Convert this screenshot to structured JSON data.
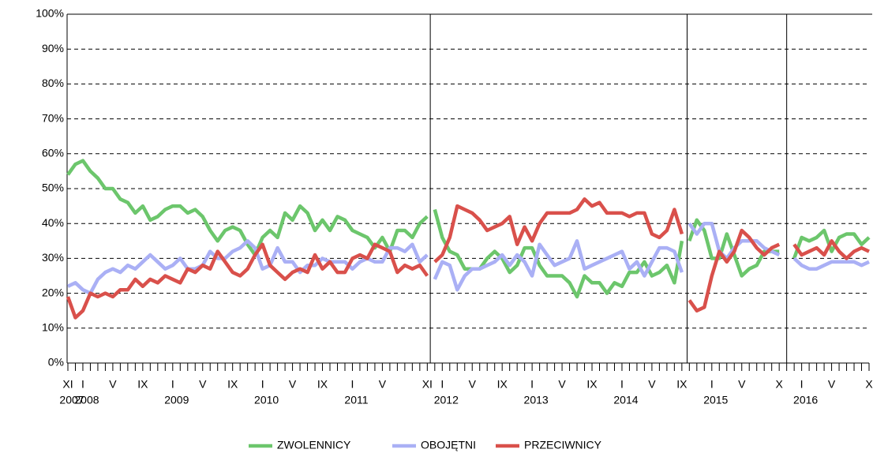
{
  "chart_data": {
    "type": "line",
    "categories": [
      "XI",
      null,
      "I",
      null,
      null,
      null,
      "V",
      null,
      null,
      null,
      "IX",
      null,
      null,
      null,
      "I",
      null,
      null,
      null,
      "V",
      null,
      null,
      null,
      "IX",
      null,
      null,
      null,
      "I",
      null,
      null,
      null,
      "V",
      null,
      null,
      null,
      "IX",
      null,
      null,
      null,
      "I",
      null,
      null,
      null,
      "V",
      null,
      null,
      null,
      null,
      null,
      "XI",
      null,
      "I",
      null,
      null,
      null,
      "V",
      null,
      null,
      null,
      "IX",
      null,
      null,
      null,
      "I",
      null,
      null,
      null,
      "V",
      null,
      null,
      null,
      "IX",
      null,
      null,
      null,
      "I",
      null,
      null,
      null,
      "V",
      null,
      null,
      null,
      "IX",
      null,
      null,
      null,
      "I",
      null,
      null,
      null,
      "V",
      null,
      null,
      null,
      null,
      "X",
      null,
      null,
      "I",
      null,
      null,
      null,
      "V",
      null,
      null,
      null,
      null,
      "X"
    ],
    "year_labels": [
      "2007",
      null,
      "2008",
      null,
      null,
      null,
      null,
      null,
      null,
      null,
      null,
      null,
      null,
      null,
      "2009",
      null,
      null,
      null,
      null,
      null,
      null,
      null,
      null,
      null,
      null,
      null,
      "2010",
      null,
      null,
      null,
      null,
      null,
      null,
      null,
      null,
      null,
      null,
      null,
      "2011",
      null,
      null,
      null,
      null,
      null,
      null,
      null,
      null,
      null,
      null,
      null,
      "2012",
      null,
      null,
      null,
      null,
      null,
      null,
      null,
      null,
      null,
      null,
      null,
      "2013",
      null,
      null,
      null,
      null,
      null,
      null,
      null,
      null,
      null,
      null,
      null,
      "2014",
      null,
      null,
      null,
      null,
      null,
      null,
      null,
      null,
      null,
      null,
      null,
      "2015",
      null,
      null,
      null,
      null,
      null,
      null,
      null,
      null,
      null,
      null,
      null,
      "2016",
      null,
      null,
      null,
      null,
      null,
      null,
      null,
      null,
      null
    ],
    "series": [
      {
        "name": "ZWOLENNICY",
        "color": "#6cc66c",
        "values": [
          54,
          57,
          58,
          55,
          53,
          50,
          50,
          47,
          46,
          43,
          45,
          41,
          42,
          44,
          45,
          45,
          43,
          44,
          42,
          38,
          35,
          38,
          39,
          38,
          34,
          31,
          36,
          38,
          36,
          43,
          41,
          45,
          43,
          38,
          41,
          38,
          42,
          41,
          38,
          37,
          36,
          33,
          36,
          32,
          38,
          38,
          36,
          40,
          42,
          44,
          36,
          32,
          31,
          27,
          27,
          27,
          30,
          32,
          30,
          26,
          28,
          33,
          33,
          28,
          25,
          25,
          25,
          23,
          19,
          25,
          23,
          23,
          20,
          23,
          22,
          26,
          26,
          29,
          25,
          26,
          28,
          23,
          35,
          35,
          41,
          38,
          30,
          30,
          37,
          31,
          25,
          27,
          28,
          32,
          32,
          32,
          null,
          30,
          36,
          35,
          36,
          38,
          32,
          36,
          37,
          37,
          34,
          36
        ]
      },
      {
        "name": "OBOJĘTNI",
        "color": "#aab0f5",
        "values": [
          22,
          23,
          21,
          20,
          24,
          26,
          27,
          26,
          28,
          27,
          29,
          31,
          29,
          27,
          28,
          30,
          27,
          27,
          28,
          32,
          30,
          30,
          32,
          33,
          35,
          33,
          27,
          28,
          33,
          29,
          29,
          26,
          28,
          28,
          30,
          29,
          29,
          29,
          27,
          29,
          30,
          29,
          29,
          33,
          33,
          32,
          34,
          29,
          31,
          24,
          29,
          28,
          21,
          25,
          27,
          27,
          28,
          29,
          31,
          28,
          31,
          29,
          25,
          34,
          31,
          28,
          29,
          30,
          35,
          27,
          28,
          29,
          30,
          31,
          32,
          27,
          29,
          25,
          29,
          33,
          33,
          32,
          26,
          40,
          37,
          40,
          40,
          32,
          30,
          33,
          35,
          35,
          35,
          33,
          32,
          31,
          null,
          30,
          28,
          27,
          27,
          28,
          29,
          29,
          29,
          29,
          28,
          29
        ]
      },
      {
        "name": "PRZECIWNICY",
        "color": "#d9504b",
        "values": [
          19,
          13,
          15,
          20,
          19,
          20,
          19,
          21,
          21,
          24,
          22,
          24,
          23,
          25,
          24,
          23,
          27,
          26,
          28,
          27,
          32,
          29,
          26,
          25,
          27,
          31,
          34,
          28,
          26,
          24,
          26,
          27,
          26,
          31,
          27,
          29,
          26,
          26,
          30,
          31,
          30,
          34,
          33,
          32,
          26,
          28,
          27,
          28,
          25,
          29,
          31,
          36,
          45,
          44,
          43,
          41,
          38,
          39,
          40,
          42,
          34,
          39,
          35,
          40,
          43,
          43,
          43,
          43,
          44,
          47,
          45,
          46,
          43,
          43,
          43,
          42,
          43,
          43,
          37,
          36,
          38,
          44,
          37,
          18,
          15,
          16,
          25,
          32,
          29,
          32,
          38,
          36,
          33,
          31,
          33,
          34,
          null,
          34,
          31,
          32,
          33,
          31,
          35,
          32,
          30,
          32,
          33,
          32
        ]
      }
    ],
    "ylim": [
      0,
      100
    ],
    "yticks": [
      {
        "value": 0,
        "label": "0%"
      },
      {
        "value": 10,
        "label": "10%"
      },
      {
        "value": 20,
        "label": "20%"
      },
      {
        "value": 30,
        "label": "30%"
      },
      {
        "value": 40,
        "label": "40%"
      },
      {
        "value": 50,
        "label": "50%"
      },
      {
        "value": 60,
        "label": "60%"
      },
      {
        "value": 70,
        "label": "70%"
      },
      {
        "value": 80,
        "label": "80%"
      },
      {
        "value": 90,
        "label": "90%"
      },
      {
        "value": 100,
        "label": "100%"
      }
    ],
    "grid": true,
    "legend": "bottom"
  }
}
